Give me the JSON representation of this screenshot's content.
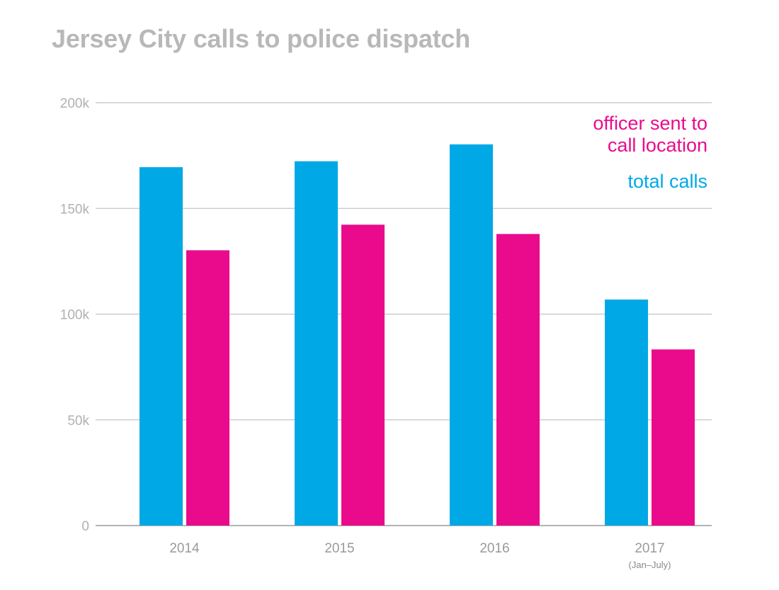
{
  "chart_data": {
    "type": "bar",
    "title": "Jersey City calls to police dispatch",
    "xlabel": "",
    "ylabel": "",
    "ylim": [
      0,
      200000
    ],
    "yticks": [
      0,
      50000,
      100000,
      150000,
      200000
    ],
    "ytick_labels": [
      "0",
      "50k",
      "100k",
      "150k",
      "200k"
    ],
    "categories": [
      "2014",
      "2015",
      "2016",
      "2017"
    ],
    "category_sublabels": [
      "",
      "",
      "",
      "(Jan–July)"
    ],
    "grid": true,
    "legend_position": "top-right",
    "series": [
      {
        "name": "total calls",
        "color": "#00a9e6",
        "values": [
          169500,
          172300,
          180300,
          106900
        ]
      },
      {
        "name": "officer sent to call location",
        "color": "#e90b8c",
        "values": [
          130200,
          142300,
          137900,
          83300
        ]
      }
    ],
    "legend": [
      {
        "lines": [
          "officer sent to",
          "call location"
        ],
        "color": "#e90b8c"
      },
      {
        "lines": [
          "total calls"
        ],
        "color": "#00a9e6"
      }
    ]
  }
}
